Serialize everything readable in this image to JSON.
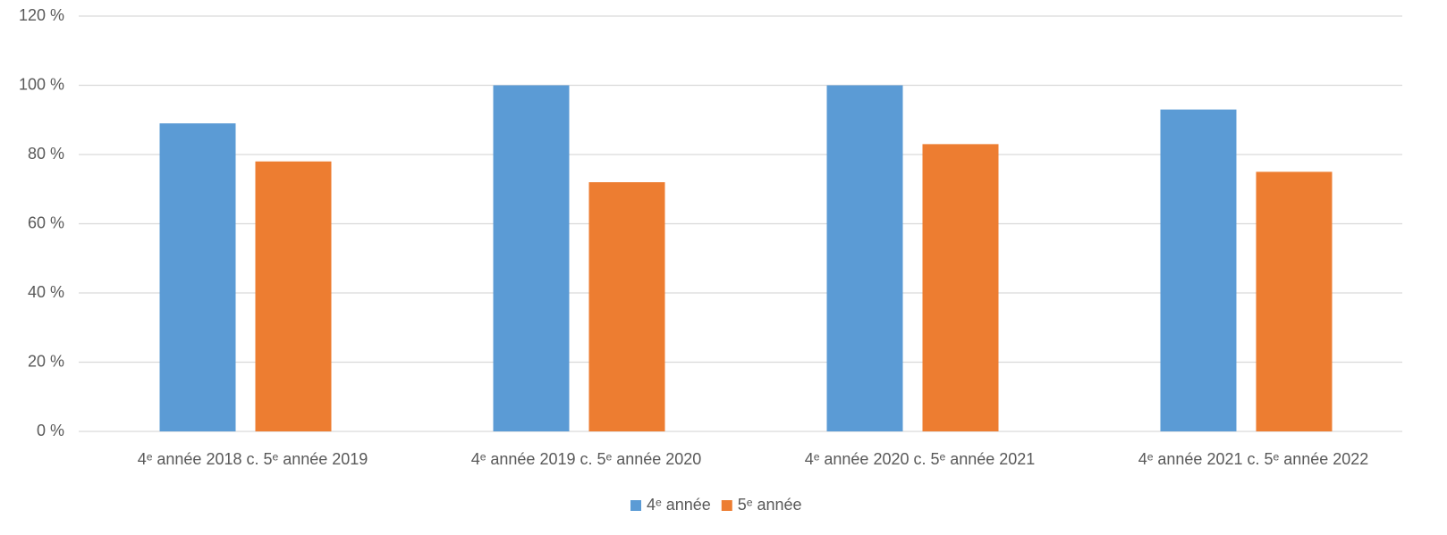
{
  "chart_data": {
    "type": "bar",
    "categories": [
      "4ᵉ année 2018 c. 5ᵉ année 2019",
      "4ᵉ année 2019 c. 5ᵉ année 2020",
      "4ᵉ année 2020 c. 5ᵉ année  2021",
      "4ᵉ année 2021 c. 5ᵉ année 2022"
    ],
    "series": [
      {
        "name": "4ᵉ année",
        "color": "#5b9bd5",
        "values": [
          89,
          100,
          100,
          93
        ]
      },
      {
        "name": "5ᵉ année",
        "color": "#ed7d31",
        "values": [
          78,
          72,
          83,
          75
        ]
      }
    ],
    "ylim": [
      0,
      120
    ],
    "yticks": [
      {
        "value": 0,
        "label": "0 %"
      },
      {
        "value": 20,
        "label": "20 %"
      },
      {
        "value": 40,
        "label": "40 %"
      },
      {
        "value": 60,
        "label": "60 %"
      },
      {
        "value": 80,
        "label": "80 %"
      },
      {
        "value": 100,
        "label": "100 %"
      },
      {
        "value": 120,
        "label": "120 %"
      }
    ],
    "grid": true,
    "legend": "bottom"
  }
}
